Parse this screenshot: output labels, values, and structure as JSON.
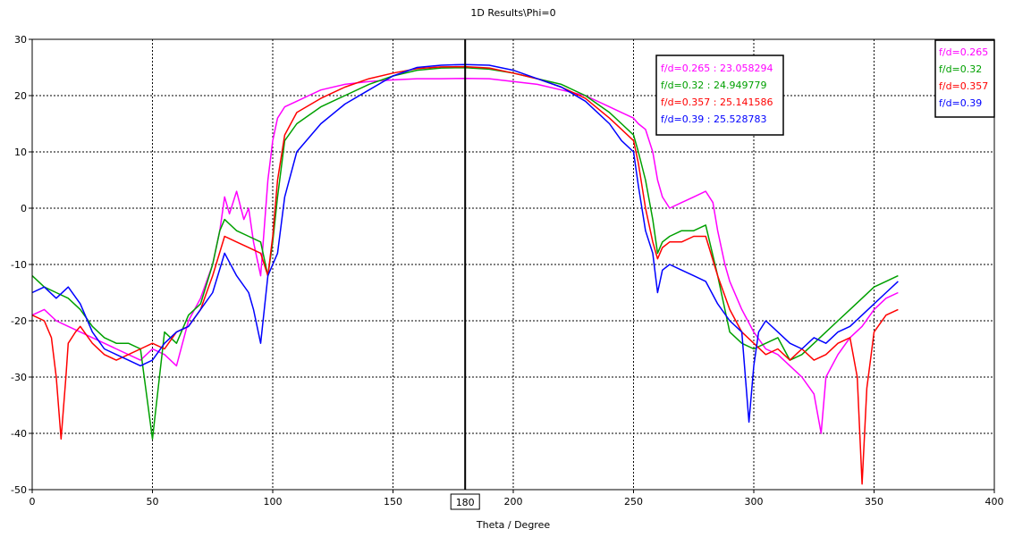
{
  "chart_data": {
    "type": "line",
    "title": "1D Results\\Phi=0",
    "xlabel": "Theta / Degree",
    "ylabel": "",
    "xlim": [
      0,
      400
    ],
    "ylim": [
      -50,
      30
    ],
    "x_ticks": [
      0,
      50,
      100,
      150,
      200,
      250,
      300,
      350,
      400
    ],
    "y_ticks": [
      30,
      20,
      10,
      0,
      -10,
      -20,
      -30,
      -40,
      -50
    ],
    "grid": true,
    "marker_x": 180,
    "marker_label": "180",
    "legend_position": "top-right",
    "legend": [
      "f/d=0.265",
      "f/d=0.32",
      "f/d=0.357",
      "f/d=0.39"
    ],
    "marker_readout": [
      "f/d=0.265 : 23.058294",
      "f/d=0.32 : 24.949779",
      "f/d=0.357 : 25.141586",
      "f/d=0.39 : 25.528783"
    ],
    "series": [
      {
        "name": "f/d=0.265",
        "color": "#ff00ff",
        "x": [
          0,
          5,
          10,
          15,
          20,
          25,
          30,
          35,
          40,
          45,
          50,
          55,
          60,
          65,
          70,
          75,
          78,
          80,
          82,
          85,
          88,
          90,
          92,
          95,
          98,
          100,
          102,
          105,
          110,
          115,
          120,
          130,
          140,
          150,
          160,
          170,
          180,
          190,
          200,
          210,
          220,
          230,
          240,
          245,
          250,
          252,
          255,
          258,
          260,
          262,
          265,
          270,
          275,
          280,
          283,
          285,
          288,
          290,
          295,
          300,
          305,
          310,
          315,
          320,
          325,
          328,
          330,
          335,
          340,
          345,
          350,
          355,
          360
        ],
        "y": [
          -19,
          -18,
          -20,
          -21,
          -22,
          -23,
          -24,
          -25,
          -26,
          -27,
          -25,
          -26,
          -28,
          -20,
          -16,
          -10,
          -4,
          2,
          -1,
          3,
          -2,
          0,
          -6,
          -12,
          5,
          12,
          16,
          18,
          19,
          20,
          21,
          22,
          22.5,
          22.8,
          23,
          23,
          23.06,
          23,
          22.5,
          22,
          21,
          20,
          18,
          17,
          16,
          15,
          14,
          10,
          5,
          2,
          0,
          1,
          2,
          3,
          1,
          -4,
          -10,
          -13,
          -18,
          -22,
          -25,
          -26,
          -28,
          -30,
          -33,
          -40,
          -30,
          -26,
          -23,
          -21,
          -18,
          -16,
          -15
        ]
      },
      {
        "name": "f/d=0.32",
        "color": "#00a000",
        "x": [
          0,
          5,
          10,
          15,
          20,
          25,
          30,
          35,
          40,
          45,
          50,
          55,
          60,
          65,
          70,
          75,
          78,
          80,
          85,
          90,
          95,
          98,
          100,
          102,
          105,
          110,
          120,
          130,
          140,
          150,
          160,
          170,
          180,
          190,
          200,
          210,
          220,
          230,
          240,
          245,
          250,
          252,
          255,
          258,
          260,
          262,
          265,
          270,
          275,
          280,
          285,
          290,
          295,
          300,
          305,
          310,
          315,
          320,
          325,
          330,
          335,
          340,
          345,
          350,
          355,
          360
        ],
        "y": [
          -12,
          -14,
          -15,
          -16,
          -18,
          -21,
          -23,
          -24,
          -24,
          -25,
          -41,
          -22,
          -24,
          -19,
          -17,
          -10,
          -4,
          -2,
          -4,
          -5,
          -6,
          -12,
          -6,
          2,
          12,
          15,
          18,
          20,
          22,
          23.5,
          24.5,
          24.9,
          24.95,
          24.7,
          24,
          23,
          22,
          20,
          17,
          15,
          13,
          10,
          5,
          -2,
          -8,
          -6,
          -5,
          -4,
          -4,
          -3,
          -12,
          -22,
          -24,
          -25,
          -24,
          -23,
          -27,
          -26,
          -24,
          -22,
          -20,
          -18,
          -16,
          -14,
          -13,
          -12
        ]
      },
      {
        "name": "f/d=0.357",
        "color": "#ff0000",
        "x": [
          0,
          5,
          8,
          10,
          12,
          14,
          15,
          18,
          20,
          25,
          30,
          35,
          40,
          45,
          50,
          55,
          60,
          65,
          70,
          75,
          80,
          85,
          90,
          95,
          98,
          100,
          102,
          105,
          110,
          120,
          130,
          140,
          150,
          160,
          170,
          180,
          190,
          200,
          210,
          220,
          230,
          240,
          245,
          250,
          252,
          255,
          258,
          260,
          262,
          265,
          270,
          275,
          280,
          285,
          290,
          295,
          300,
          305,
          310,
          315,
          320,
          325,
          330,
          335,
          340,
          343,
          345,
          347,
          350,
          355,
          360
        ],
        "y": [
          -19,
          -20,
          -23,
          -30,
          -41,
          -30,
          -24,
          -22,
          -21,
          -24,
          -26,
          -27,
          -26,
          -25,
          -24,
          -25,
          -22,
          -21,
          -18,
          -12,
          -5,
          -6,
          -7,
          -8,
          -12,
          -5,
          5,
          13,
          17,
          19.5,
          21.5,
          23,
          24,
          24.8,
          25.1,
          25.14,
          24.9,
          24,
          23,
          21.5,
          19.5,
          16,
          14,
          12,
          8,
          0,
          -6,
          -9,
          -7,
          -6,
          -6,
          -5,
          -5,
          -12,
          -18,
          -22,
          -24,
          -26,
          -25,
          -27,
          -25,
          -27,
          -26,
          -24,
          -23,
          -30,
          -49,
          -32,
          -22,
          -19,
          -18
        ]
      },
      {
        "name": "f/d=0.39",
        "color": "#0000ff",
        "x": [
          0,
          5,
          10,
          15,
          20,
          25,
          30,
          35,
          40,
          45,
          50,
          55,
          60,
          65,
          70,
          75,
          80,
          85,
          90,
          92,
          95,
          98,
          100,
          102,
          105,
          110,
          120,
          130,
          140,
          150,
          160,
          170,
          180,
          190,
          200,
          210,
          220,
          230,
          240,
          245,
          250,
          252,
          255,
          258,
          260,
          262,
          265,
          270,
          275,
          280,
          285,
          290,
          295,
          298,
          300,
          302,
          305,
          310,
          315,
          320,
          325,
          330,
          335,
          340,
          345,
          350,
          355,
          360
        ],
        "y": [
          -15,
          -14,
          -16,
          -14,
          -17,
          -22,
          -25,
          -26,
          -27,
          -28,
          -27,
          -24,
          -22,
          -21,
          -18,
          -15,
          -8,
          -12,
          -15,
          -18,
          -24,
          -12,
          -10,
          -8,
          2,
          10,
          15,
          18.5,
          21,
          23.5,
          25,
          25.4,
          25.53,
          25.4,
          24.5,
          23,
          21.5,
          19,
          15,
          12,
          10,
          4,
          -4,
          -8,
          -15,
          -11,
          -10,
          -11,
          -12,
          -13,
          -17,
          -20,
          -22,
          -38,
          -28,
          -22,
          -20,
          -22,
          -24,
          -25,
          -23,
          -24,
          -22,
          -21,
          -19,
          -17,
          -15,
          -13
        ]
      }
    ]
  }
}
